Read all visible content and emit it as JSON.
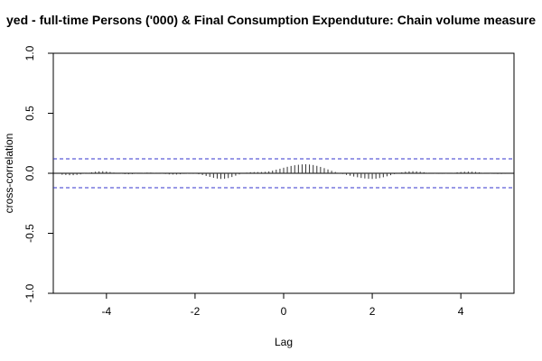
{
  "chart_data": {
    "type": "bar",
    "title": "yed - full-time Persons ('000) & Final Consumption Expenduture: Chain volume measure",
    "xlabel": "Lag",
    "ylabel": "cross-correlation",
    "xlim": [
      -5.2,
      5.2
    ],
    "ylim": [
      -1.0,
      1.0
    ],
    "x_ticks": [
      {
        "value": -4,
        "label": "-4"
      },
      {
        "value": -2,
        "label": "-2"
      },
      {
        "value": 0,
        "label": "0"
      },
      {
        "value": 2,
        "label": "2"
      },
      {
        "value": 4,
        "label": "4"
      }
    ],
    "y_ticks": [
      {
        "value": -1.0,
        "label": "-1.0"
      },
      {
        "value": -0.5,
        "label": "-0.5"
      },
      {
        "value": 0.0,
        "label": "0.0"
      },
      {
        "value": 0.5,
        "label": "0.5"
      },
      {
        "value": 1.0,
        "label": "1.0"
      }
    ],
    "confidence_bounds": [
      0.12,
      -0.12
    ],
    "confidence_color": "#3333cc",
    "spike_color": "#333333",
    "x": [
      -5.0,
      -4.917,
      -4.833,
      -4.75,
      -4.667,
      -4.583,
      -4.5,
      -4.417,
      -4.333,
      -4.25,
      -4.167,
      -4.083,
      -4.0,
      -3.917,
      -3.833,
      -3.75,
      -3.667,
      -3.583,
      -3.5,
      -3.417,
      -3.333,
      -3.25,
      -3.167,
      -3.083,
      -3.0,
      -2.917,
      -2.833,
      -2.75,
      -2.667,
      -2.583,
      -2.5,
      -2.417,
      -2.333,
      -2.25,
      -2.167,
      -2.083,
      -2.0,
      -1.917,
      -1.833,
      -1.75,
      -1.667,
      -1.583,
      -1.5,
      -1.417,
      -1.333,
      -1.25,
      -1.167,
      -1.083,
      -1.0,
      -0.917,
      -0.833,
      -0.75,
      -0.667,
      -0.583,
      -0.5,
      -0.417,
      -0.333,
      -0.25,
      -0.167,
      -0.083,
      0.0,
      0.083,
      0.167,
      0.25,
      0.333,
      0.417,
      0.5,
      0.583,
      0.667,
      0.75,
      0.833,
      0.917,
      1.0,
      1.083,
      1.167,
      1.25,
      1.333,
      1.417,
      1.5,
      1.583,
      1.667,
      1.75,
      1.833,
      1.917,
      2.0,
      2.083,
      2.167,
      2.25,
      2.333,
      2.417,
      2.5,
      2.583,
      2.667,
      2.75,
      2.833,
      2.917,
      3.0,
      3.083,
      3.167,
      3.25,
      3.333,
      3.417,
      3.5,
      3.583,
      3.667,
      3.75,
      3.833,
      3.917,
      4.0,
      4.083,
      4.167,
      4.25,
      4.333,
      4.417,
      4.5,
      4.583,
      4.667,
      4.75,
      4.833,
      4.917,
      5.0
    ],
    "values": [
      -0.012,
      -0.014,
      -0.016,
      -0.016,
      -0.013,
      -0.009,
      -0.004,
      0.002,
      0.008,
      0.013,
      0.016,
      0.017,
      0.015,
      0.011,
      0.006,
      0.001,
      -0.004,
      -0.007,
      -0.008,
      -0.007,
      -0.004,
      0.0,
      0.004,
      0.006,
      0.006,
      0.004,
      0.001,
      -0.003,
      -0.006,
      -0.009,
      -0.01,
      -0.01,
      -0.008,
      -0.005,
      -0.003,
      -0.002,
      -0.004,
      -0.008,
      -0.014,
      -0.022,
      -0.03,
      -0.038,
      -0.044,
      -0.047,
      -0.046,
      -0.04,
      -0.031,
      -0.02,
      -0.009,
      0.0,
      0.006,
      0.009,
      0.01,
      0.01,
      0.01,
      0.012,
      0.016,
      0.022,
      0.03,
      0.038,
      0.046,
      0.054,
      0.061,
      0.067,
      0.071,
      0.074,
      0.075,
      0.073,
      0.069,
      0.062,
      0.053,
      0.043,
      0.032,
      0.021,
      0.011,
      0.002,
      -0.006,
      -0.013,
      -0.02,
      -0.027,
      -0.033,
      -0.039,
      -0.043,
      -0.046,
      -0.047,
      -0.045,
      -0.04,
      -0.033,
      -0.025,
      -0.016,
      -0.007,
      0.001,
      0.008,
      0.013,
      0.016,
      0.017,
      0.016,
      0.013,
      0.009,
      0.004,
      0.0,
      -0.003,
      -0.005,
      -0.005,
      -0.003,
      0.0,
      0.004,
      0.008,
      0.011,
      0.013,
      0.014,
      0.013,
      0.011,
      0.008,
      0.004,
      0.0,
      -0.003,
      -0.005,
      -0.006,
      -0.006,
      -0.005
    ]
  }
}
